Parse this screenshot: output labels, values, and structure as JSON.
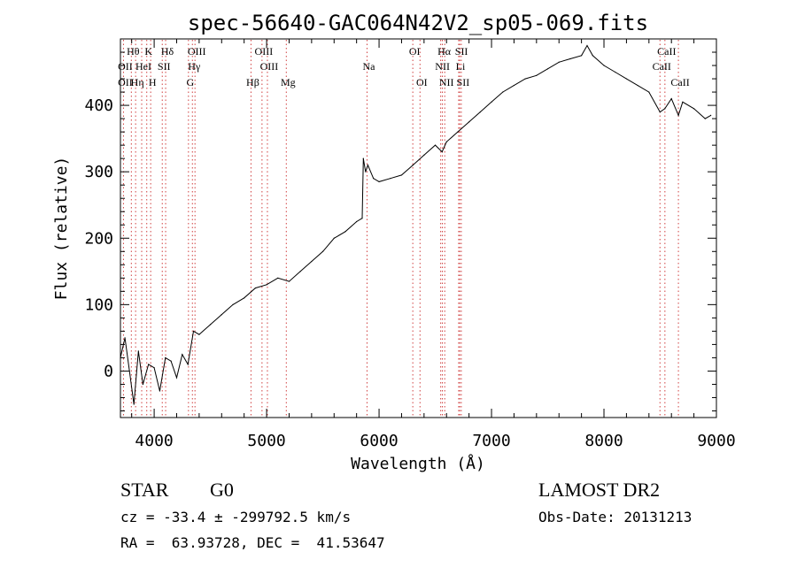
{
  "chart_data": {
    "type": "line",
    "title": "spec-56640-GAC064N42V2_sp05-069.fits",
    "xlabel": "Wavelength (Å)",
    "ylabel": "Flux (relative)",
    "xlim": [
      3700,
      9000
    ],
    "ylim": [
      -70,
      500
    ],
    "grid": false,
    "x_ticks": [
      4000,
      5000,
      6000,
      7000,
      8000,
      9000
    ],
    "y_ticks": [
      0,
      100,
      200,
      300,
      400
    ],
    "series": [
      {
        "x": [
          3700,
          3740,
          3780,
          3820,
          3860,
          3900,
          3950,
          4000,
          4050,
          4100,
          4150,
          4200,
          4250,
          4300,
          4350,
          4400,
          4500,
          4600,
          4700,
          4800,
          4900,
          5000,
          5100,
          5200,
          5300,
          5400,
          5500,
          5600,
          5700,
          5800,
          5850,
          5860,
          5880,
          5900,
          5950,
          6000,
          6100,
          6200,
          6300,
          6400,
          6500,
          6560,
          6600,
          6700,
          6800,
          6900,
          7000,
          7100,
          7200,
          7300,
          7400,
          7500,
          7600,
          7700,
          7800,
          7850,
          7900,
          8000,
          8100,
          8200,
          8300,
          8400,
          8498,
          8542,
          8600,
          8662,
          8700,
          8800,
          8900,
          8950
        ],
        "y": [
          20,
          50,
          0,
          -50,
          30,
          -20,
          10,
          5,
          -30,
          20,
          15,
          -10,
          25,
          10,
          60,
          55,
          70,
          85,
          100,
          110,
          125,
          130,
          140,
          135,
          150,
          165,
          180,
          200,
          210,
          225,
          230,
          320,
          300,
          310,
          290,
          285,
          290,
          295,
          310,
          325,
          340,
          330,
          345,
          360,
          375,
          390,
          405,
          420,
          430,
          440,
          445,
          455,
          465,
          470,
          475,
          490,
          475,
          460,
          450,
          440,
          430,
          420,
          390,
          395,
          410,
          385,
          405,
          395,
          380,
          385
        ]
      }
    ],
    "spectral_lines": [
      {
        "label": "Hθ",
        "wavelength": 3797,
        "row": 1
      },
      {
        "label": "K",
        "wavelength": 3934,
        "row": 1
      },
      {
        "label": "Hδ",
        "wavelength": 4102,
        "row": 1
      },
      {
        "label": "OIII",
        "wavelength": 4363,
        "row": 1
      },
      {
        "label": "OIII",
        "wavelength": 4959,
        "row": 1
      },
      {
        "label": "OI",
        "wavelength": 6300,
        "row": 1
      },
      {
        "label": "Hα",
        "wavelength": 6563,
        "row": 1
      },
      {
        "label": "SII",
        "wavelength": 6717,
        "row": 1
      },
      {
        "label": "CaII",
        "wavelength": 8542,
        "row": 1
      },
      {
        "label": "OII",
        "wavelength": 3727,
        "row": 2
      },
      {
        "label": "HeI",
        "wavelength": 3889,
        "row": 2
      },
      {
        "label": "SII",
        "wavelength": 4072,
        "row": 2
      },
      {
        "label": "Hγ",
        "wavelength": 4340,
        "row": 2
      },
      {
        "label": "OIII",
        "wavelength": 5007,
        "row": 2
      },
      {
        "label": "Na",
        "wavelength": 5893,
        "row": 2
      },
      {
        "label": "NII",
        "wavelength": 6548,
        "row": 2
      },
      {
        "label": "Li",
        "wavelength": 6708,
        "row": 2
      },
      {
        "label": "CaII",
        "wavelength": 8498,
        "row": 2
      },
      {
        "label": "OII",
        "wavelength": 3727,
        "row": 3
      },
      {
        "label": "Hη",
        "wavelength": 3835,
        "row": 3
      },
      {
        "label": "H",
        "wavelength": 3969,
        "row": 3
      },
      {
        "label": "G",
        "wavelength": 4305,
        "row": 3
      },
      {
        "label": "Hβ",
        "wavelength": 4861,
        "row": 3
      },
      {
        "label": "Mg",
        "wavelength": 5175,
        "row": 3
      },
      {
        "label": "OI",
        "wavelength": 6364,
        "row": 3
      },
      {
        "label": "NII",
        "wavelength": 6584,
        "row": 3
      },
      {
        "label": "SII",
        "wavelength": 6731,
        "row": 3
      },
      {
        "label": "CaII",
        "wavelength": 8662,
        "row": 3
      }
    ],
    "line_color": "#000000",
    "marker_color": "#d04040"
  },
  "info": {
    "object_type": "STAR",
    "subclass": "G0",
    "cz": "cz = -33.4 ± -299792.5 km/s",
    "radec": "RA =  63.93728, DEC =  41.53647",
    "survey": "LAMOST DR2",
    "obs_date": "Obs-Date: 20131213"
  }
}
